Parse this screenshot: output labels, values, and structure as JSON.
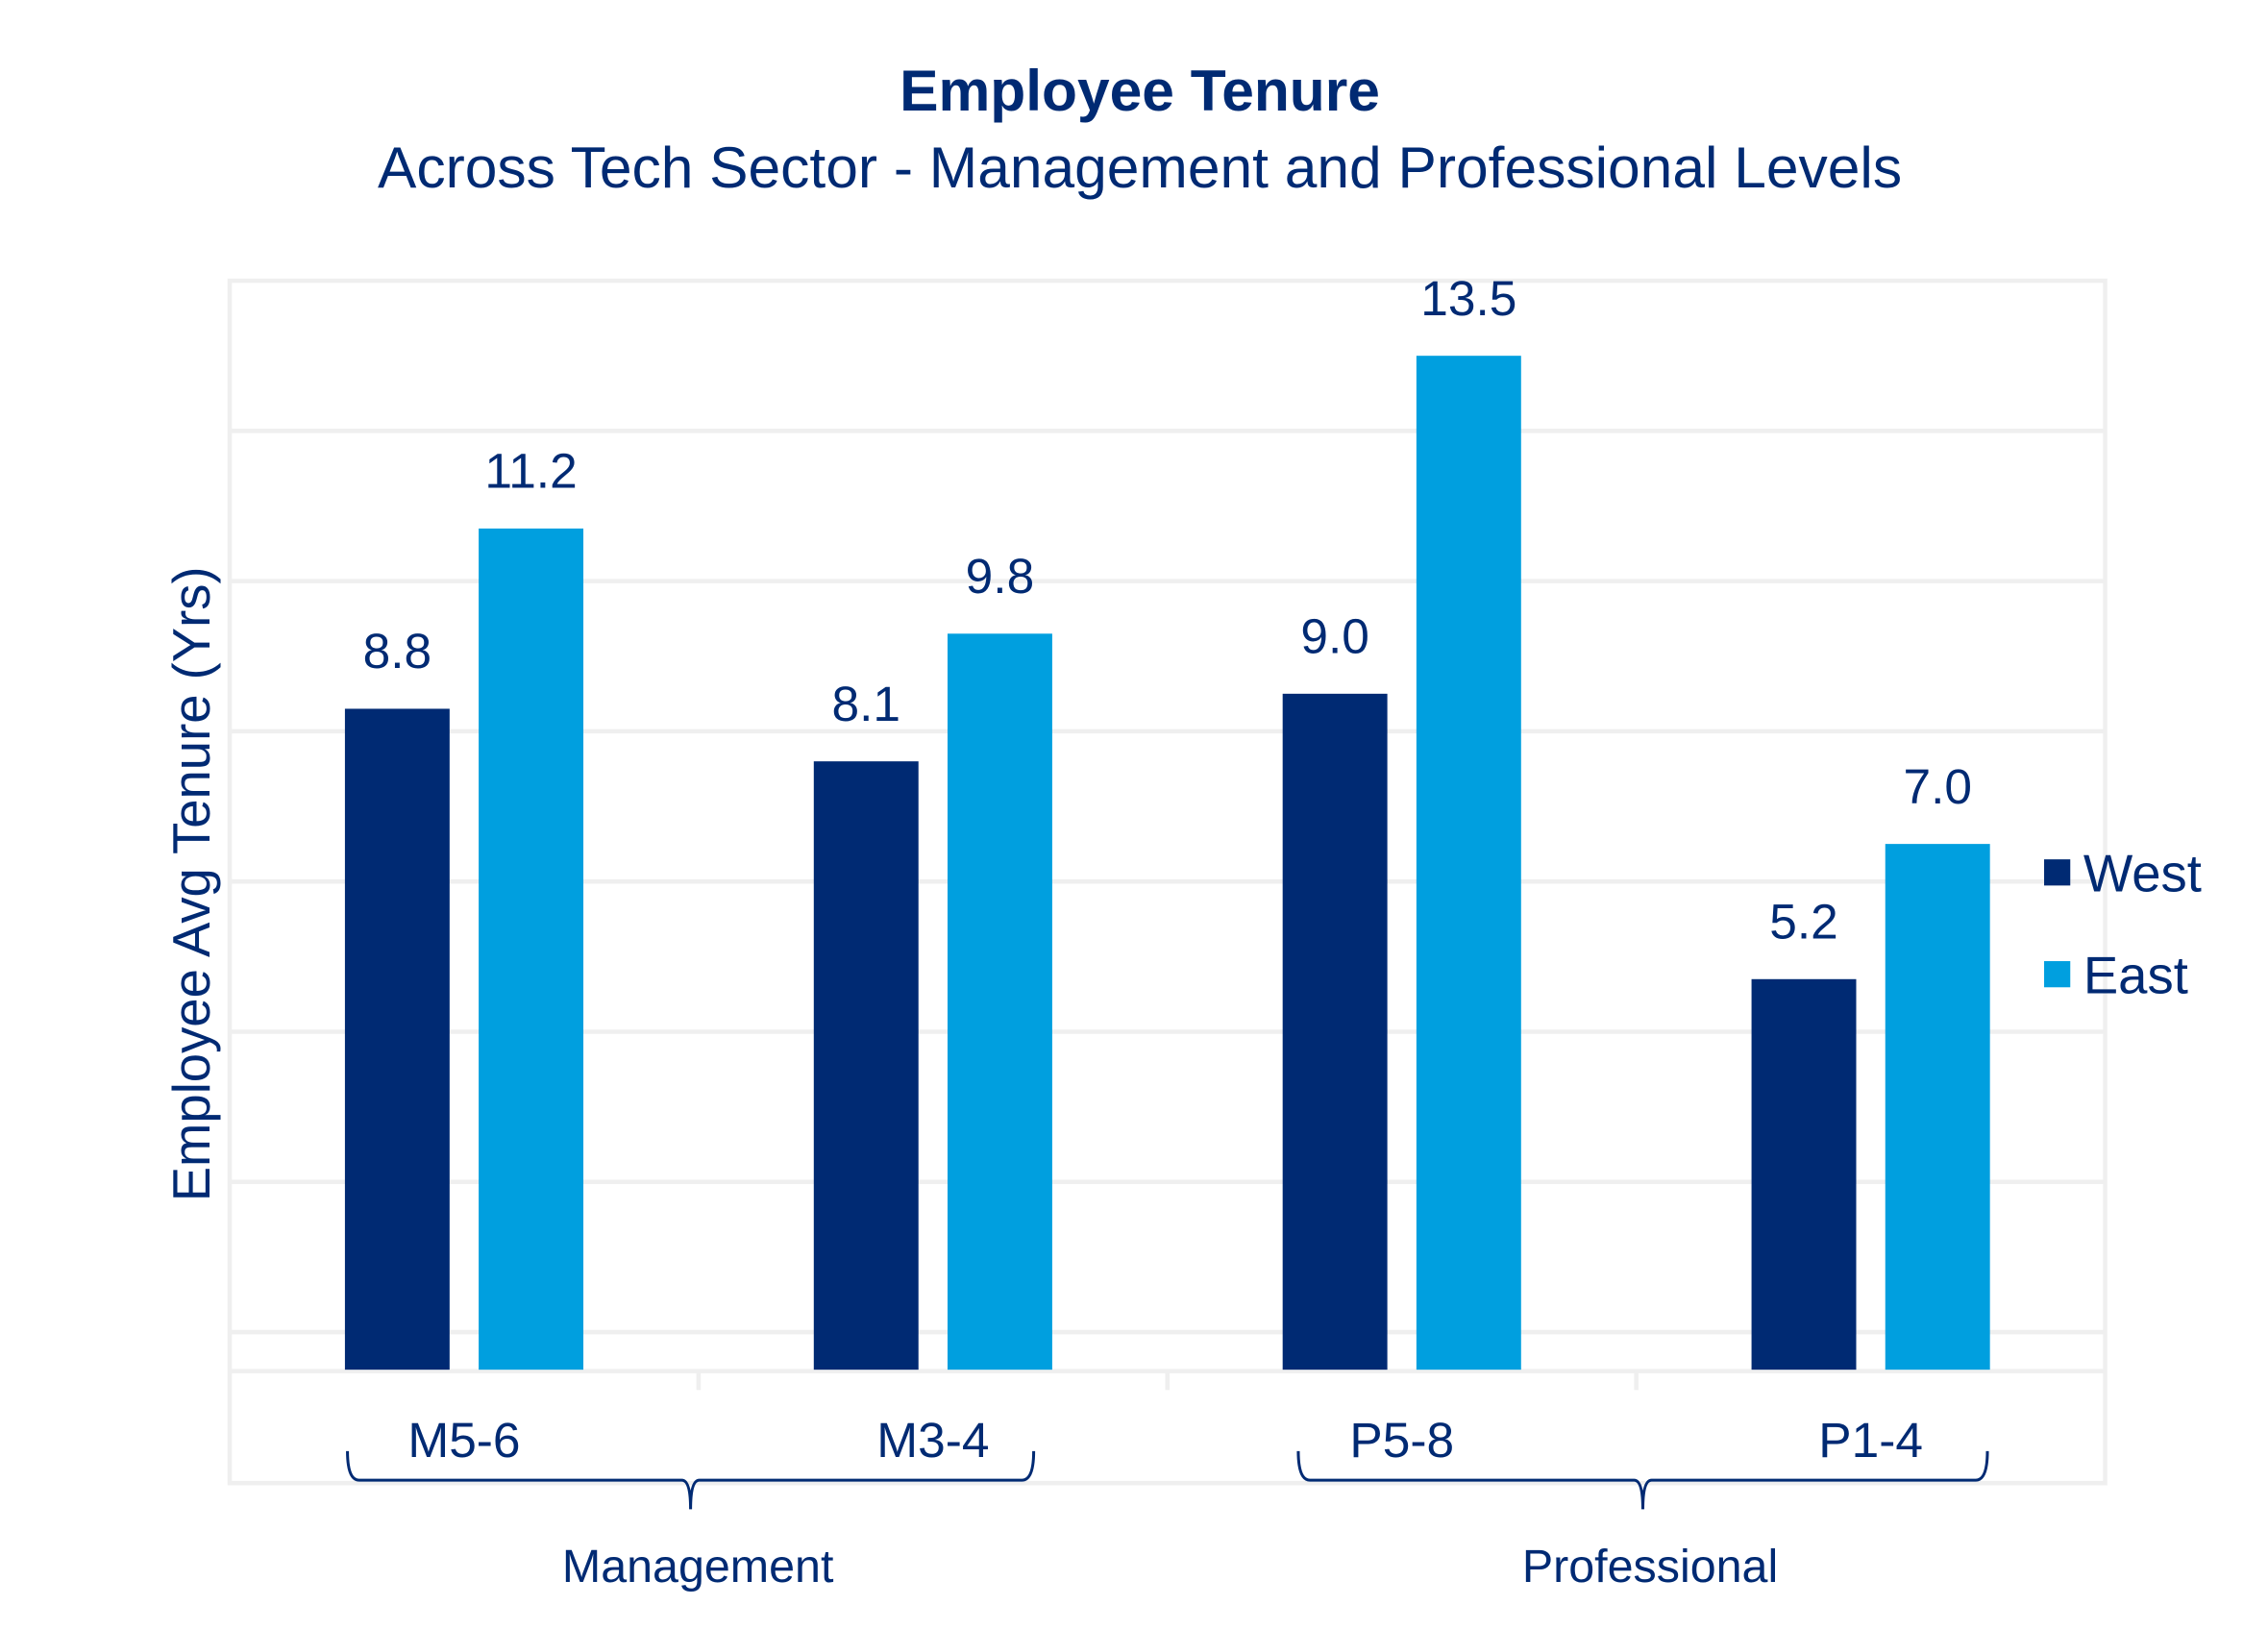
{
  "chart_data": {
    "type": "bar",
    "title": "Employee Tenure",
    "subtitle": "Across Tech Sector - Management and Professional Levels",
    "xlabel": "",
    "ylabel": "Employee Avg Tenure (Yrs)",
    "ylim": [
      0,
      14.5
    ],
    "grid": true,
    "gridlines": [
      0.5,
      2.5,
      4.5,
      6.5,
      8.5,
      10.5,
      12.5
    ],
    "legend_position": "right",
    "categories": [
      "M5-6",
      "M3-4",
      "P5-8",
      "P1-4"
    ],
    "groups": [
      {
        "label": "Management",
        "categories": [
          "M5-6",
          "M3-4"
        ]
      },
      {
        "label": "Professional",
        "categories": [
          "P5-8",
          "P1-4"
        ]
      }
    ],
    "series": [
      {
        "name": "West",
        "color": "#002a73",
        "values": [
          8.8,
          8.1,
          9.0,
          5.2
        ],
        "labels": [
          "8.8",
          "8.1",
          "9.0",
          "5.2"
        ]
      },
      {
        "name": "East",
        "color": "#009fdf",
        "values": [
          11.2,
          9.8,
          13.5,
          7.0
        ],
        "labels": [
          "11.2",
          "9.8",
          "13.5",
          "7.0"
        ]
      }
    ]
  }
}
